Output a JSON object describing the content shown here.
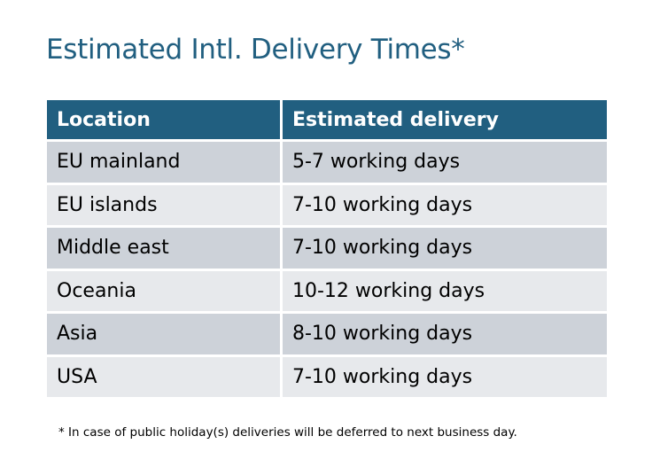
{
  "title": "Estimated Intl. Delivery Times*",
  "table": {
    "headers": [
      "Location",
      "Estimated delivery"
    ],
    "rows": [
      [
        "EU mainland",
        "5-7 working days"
      ],
      [
        "EU islands",
        "7-10 working days"
      ],
      [
        "Middle east",
        "7-10 working days"
      ],
      [
        "Oceania",
        "10-12 working days"
      ],
      [
        "Asia",
        "8-10 working days"
      ],
      [
        "USA",
        "7-10 working days"
      ]
    ]
  },
  "footnote": "* In case of public holiday(s) deliveries will be deferred to next business day.",
  "colors": {
    "header": "#215f80",
    "row_odd": "#cdd2d9",
    "row_even": "#e7e9ec"
  }
}
